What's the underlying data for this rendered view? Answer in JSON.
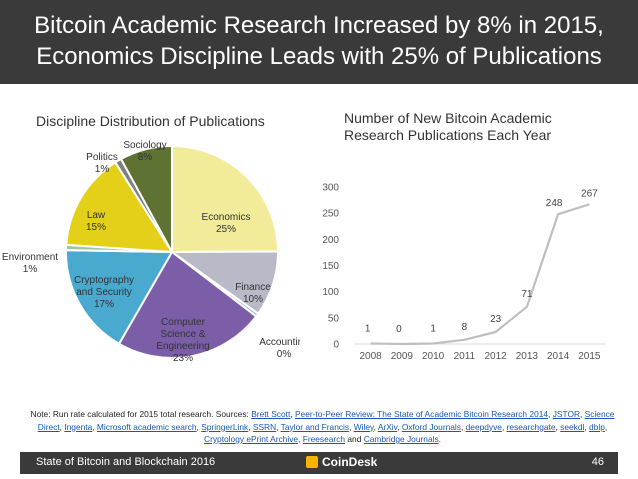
{
  "header": {
    "title_line1": "Bitcoin Academic Research Increased by 8% in 2015,",
    "title_line2": "Economics Discipline Leads with 25% of Publications"
  },
  "chart_data": [
    {
      "type": "pie",
      "title": "Discipline Distribution of Publications",
      "slices": [
        {
          "label": "Economics",
          "value": 25,
          "text": "25%",
          "color": "#f2ec9a"
        },
        {
          "label": "Finance",
          "value": 10,
          "text": "10%",
          "color": "#b9b9c7"
        },
        {
          "label": "Accounting",
          "value": 0.5,
          "text": "0%",
          "color": "#8fb6dd"
        },
        {
          "label": "Computer Science & Engineering",
          "value": 23,
          "text": "23%",
          "color": "#7b5ea7"
        },
        {
          "label": "Cryptography and Security",
          "value": 17,
          "text": "17%",
          "color": "#4aa9cf"
        },
        {
          "label": "Environment",
          "value": 0.8,
          "text": "1%",
          "color": "#a2c4a3"
        },
        {
          "label": "Law",
          "value": 15,
          "text": "15%",
          "color": "#e5d019"
        },
        {
          "label": "Politics",
          "value": 1,
          "text": "1%",
          "color": "#7f7f7f"
        },
        {
          "label": "Sociology",
          "value": 8,
          "text": "8%",
          "color": "#5e7233"
        }
      ]
    },
    {
      "type": "line",
      "title": "Number of New Bitcoin Academic Research Publications Each Year",
      "x": [
        "2008",
        "2009",
        "2010",
        "2011",
        "2012",
        "2013",
        "2014",
        "2015"
      ],
      "values": [
        1,
        0,
        1,
        8,
        23,
        71,
        248,
        267
      ],
      "ylim": [
        0,
        300
      ],
      "yticks": [
        0,
        50,
        100,
        150,
        200,
        250,
        300
      ],
      "line_color": "#bfbfbf"
    }
  ],
  "note": {
    "prefix": "Note: Run rate calculated for 2015 total research. Sources:",
    "sources": [
      "Brett Scott",
      "Peer-to-Peer Review: The State of Academic Bitcoin Research 2014",
      "JSTOR",
      "Science Direct",
      "Ingenta",
      "Microsoft academic search",
      "SpringerLink",
      "SSRN",
      "Taylor and Francis",
      "Wiley",
      "ArXiv",
      "Oxford Journals",
      "deepdyve",
      "researchgate",
      "seekdl",
      "dblp",
      "Cryptology ePrint Archive",
      "Freesearch",
      "Cambridge Journals"
    ]
  },
  "footer": {
    "left": "State of Bitcoin and Blockchain 2016",
    "brand": "CoinDesk",
    "page": "46"
  }
}
